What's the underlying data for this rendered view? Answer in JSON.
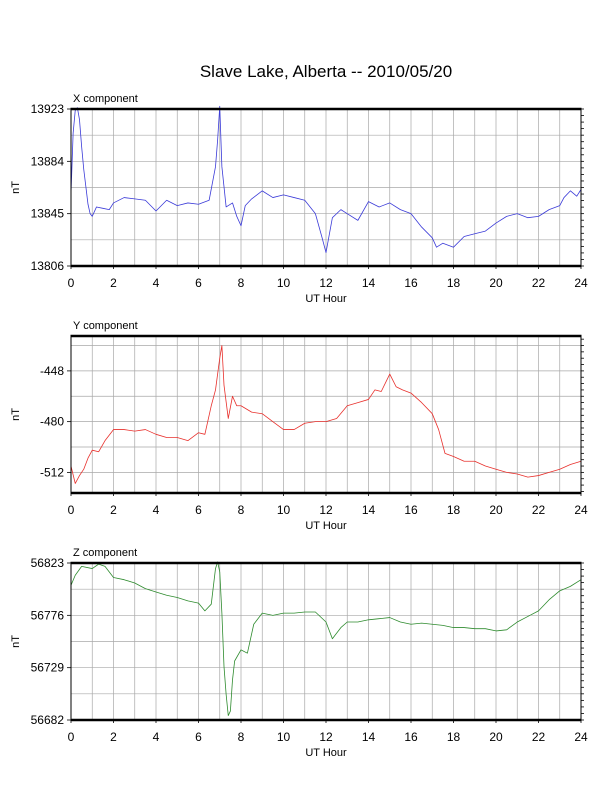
{
  "title": "Slave Lake, Alberta -- 2010/05/20",
  "chart_data": [
    {
      "type": "line",
      "label": "X component",
      "ylabel": "nT",
      "xlabel": "UT Hour",
      "xlim": [
        0,
        24
      ],
      "ylim": [
        13806,
        13923
      ],
      "x_ticks": [
        0,
        2,
        4,
        6,
        8,
        10,
        12,
        14,
        16,
        18,
        20,
        22,
        24
      ],
      "y_ticks": [
        13806,
        13845,
        13884,
        13923
      ],
      "grid": true,
      "series": [
        {
          "color": "#3b3bd8",
          "x": [
            0,
            0.1,
            0.2,
            0.3,
            0.4,
            0.5,
            0.6,
            0.7,
            0.8,
            0.9,
            1,
            1.2,
            1.5,
            1.8,
            2,
            2.5,
            3,
            3.5,
            4,
            4.5,
            5,
            5.5,
            6,
            6.5,
            6.8,
            6.9,
            7,
            7.1,
            7.3,
            7.6,
            7.8,
            8,
            8.2,
            8.5,
            9,
            9.5,
            10,
            10.5,
            11,
            11.5,
            11.8,
            12,
            12.3,
            12.7,
            13,
            13.5,
            14,
            14.5,
            15,
            15.5,
            16,
            16.5,
            17,
            17.2,
            17.5,
            18,
            18.5,
            19,
            19.5,
            20,
            20.5,
            21,
            21.5,
            22,
            22.5,
            23,
            23.2,
            23.5,
            23.8,
            24
          ],
          "y": [
            13860,
            13905,
            13922,
            13924,
            13915,
            13895,
            13878,
            13865,
            13852,
            13845,
            13843,
            13850,
            13849,
            13848,
            13853,
            13857,
            13856,
            13855,
            13847,
            13855,
            13851,
            13853,
            13852,
            13855,
            13880,
            13900,
            13925,
            13880,
            13850,
            13853,
            13843,
            13836,
            13851,
            13856,
            13862,
            13857,
            13859,
            13857,
            13855,
            13845,
            13828,
            13816,
            13842,
            13848,
            13845,
            13840,
            13854,
            13850,
            13853,
            13848,
            13845,
            13835,
            13827,
            13820,
            13823,
            13820,
            13828,
            13830,
            13832,
            13838,
            13843,
            13845,
            13842,
            13843,
            13848,
            13851,
            13857,
            13862,
            13858,
            13863
          ]
        }
      ]
    },
    {
      "type": "line",
      "label": "Y component",
      "ylabel": "nT",
      "xlabel": "UT Hour",
      "xlim": [
        0,
        24
      ],
      "ylim": [
        -525,
        -426
      ],
      "x_ticks": [
        0,
        2,
        4,
        6,
        8,
        10,
        12,
        14,
        16,
        18,
        20,
        22,
        24
      ],
      "y_ticks": [
        -448,
        -480,
        -512
      ],
      "grid": true,
      "series": [
        {
          "color": "#e8302c",
          "x": [
            0,
            0.2,
            0.4,
            0.6,
            0.8,
            1,
            1.3,
            1.6,
            2,
            2.5,
            3,
            3.5,
            4,
            4.5,
            5,
            5.5,
            6,
            6.3,
            6.6,
            6.8,
            7,
            7.1,
            7.2,
            7.4,
            7.6,
            7.8,
            8,
            8.5,
            9,
            9.5,
            10,
            10.5,
            11,
            11.5,
            12,
            12.5,
            13,
            13.5,
            14,
            14.3,
            14.6,
            15,
            15.3,
            15.6,
            16,
            16.5,
            17,
            17.3,
            17.6,
            18,
            18.5,
            19,
            19.5,
            20,
            20.5,
            21,
            21.5,
            22,
            22.5,
            23,
            23.5,
            24
          ],
          "y": [
            -508,
            -519,
            -514,
            -510,
            -503,
            -498,
            -499,
            -492,
            -485,
            -485,
            -486,
            -485,
            -488,
            -490,
            -490,
            -492,
            -487,
            -488,
            -470,
            -460,
            -440,
            -432,
            -457,
            -478,
            -464,
            -470,
            -470,
            -474,
            -475,
            -480,
            -485,
            -485,
            -481,
            -480,
            -480,
            -478,
            -470,
            -468,
            -466,
            -460,
            -461,
            -450,
            -458,
            -460,
            -462,
            -468,
            -475,
            -485,
            -500,
            -502,
            -505,
            -505,
            -508,
            -510,
            -512,
            -513,
            -515,
            -514,
            -512,
            -510,
            -507,
            -505
          ]
        }
      ]
    },
    {
      "type": "line",
      "label": "Z component",
      "ylabel": "nT",
      "xlabel": "UT Hour",
      "xlim": [
        0,
        24
      ],
      "ylim": [
        56682,
        56823
      ],
      "x_ticks": [
        0,
        2,
        4,
        6,
        8,
        10,
        12,
        14,
        16,
        18,
        20,
        22,
        24
      ],
      "y_ticks": [
        56823,
        56776,
        56729,
        56682
      ],
      "grid": true,
      "series": [
        {
          "color": "#2e8b2e",
          "x": [
            0,
            0.2,
            0.5,
            1,
            1.3,
            1.6,
            2,
            2.5,
            3,
            3.5,
            4,
            4.5,
            5,
            5.5,
            6,
            6.3,
            6.6,
            6.8,
            6.9,
            7,
            7.1,
            7.2,
            7.3,
            7.4,
            7.5,
            7.6,
            7.7,
            8,
            8.3,
            8.6,
            9,
            9.5,
            10,
            10.5,
            11,
            11.5,
            12,
            12.3,
            12.7,
            13,
            13.5,
            14,
            14.5,
            15,
            15.5,
            16,
            16.5,
            17,
            17.5,
            18,
            18.5,
            19,
            19.5,
            20,
            20.5,
            21,
            21.5,
            22,
            22.5,
            23,
            23.5,
            24
          ],
          "y": [
            56803,
            56812,
            56820,
            56818,
            56822,
            56820,
            56810,
            56808,
            56805,
            56800,
            56797,
            56794,
            56792,
            56789,
            56787,
            56780,
            56786,
            56818,
            56824,
            56815,
            56778,
            56730,
            56705,
            56686,
            56690,
            56718,
            56735,
            56745,
            56742,
            56768,
            56778,
            56776,
            56778,
            56778,
            56779,
            56779,
            56770,
            56755,
            56765,
            56770,
            56770,
            56772,
            56773,
            56774,
            56770,
            56768,
            56769,
            56768,
            56767,
            56765,
            56765,
            56764,
            56764,
            56762,
            56763,
            56770,
            56775,
            56780,
            56790,
            56798,
            56802,
            56808
          ]
        }
      ]
    }
  ]
}
